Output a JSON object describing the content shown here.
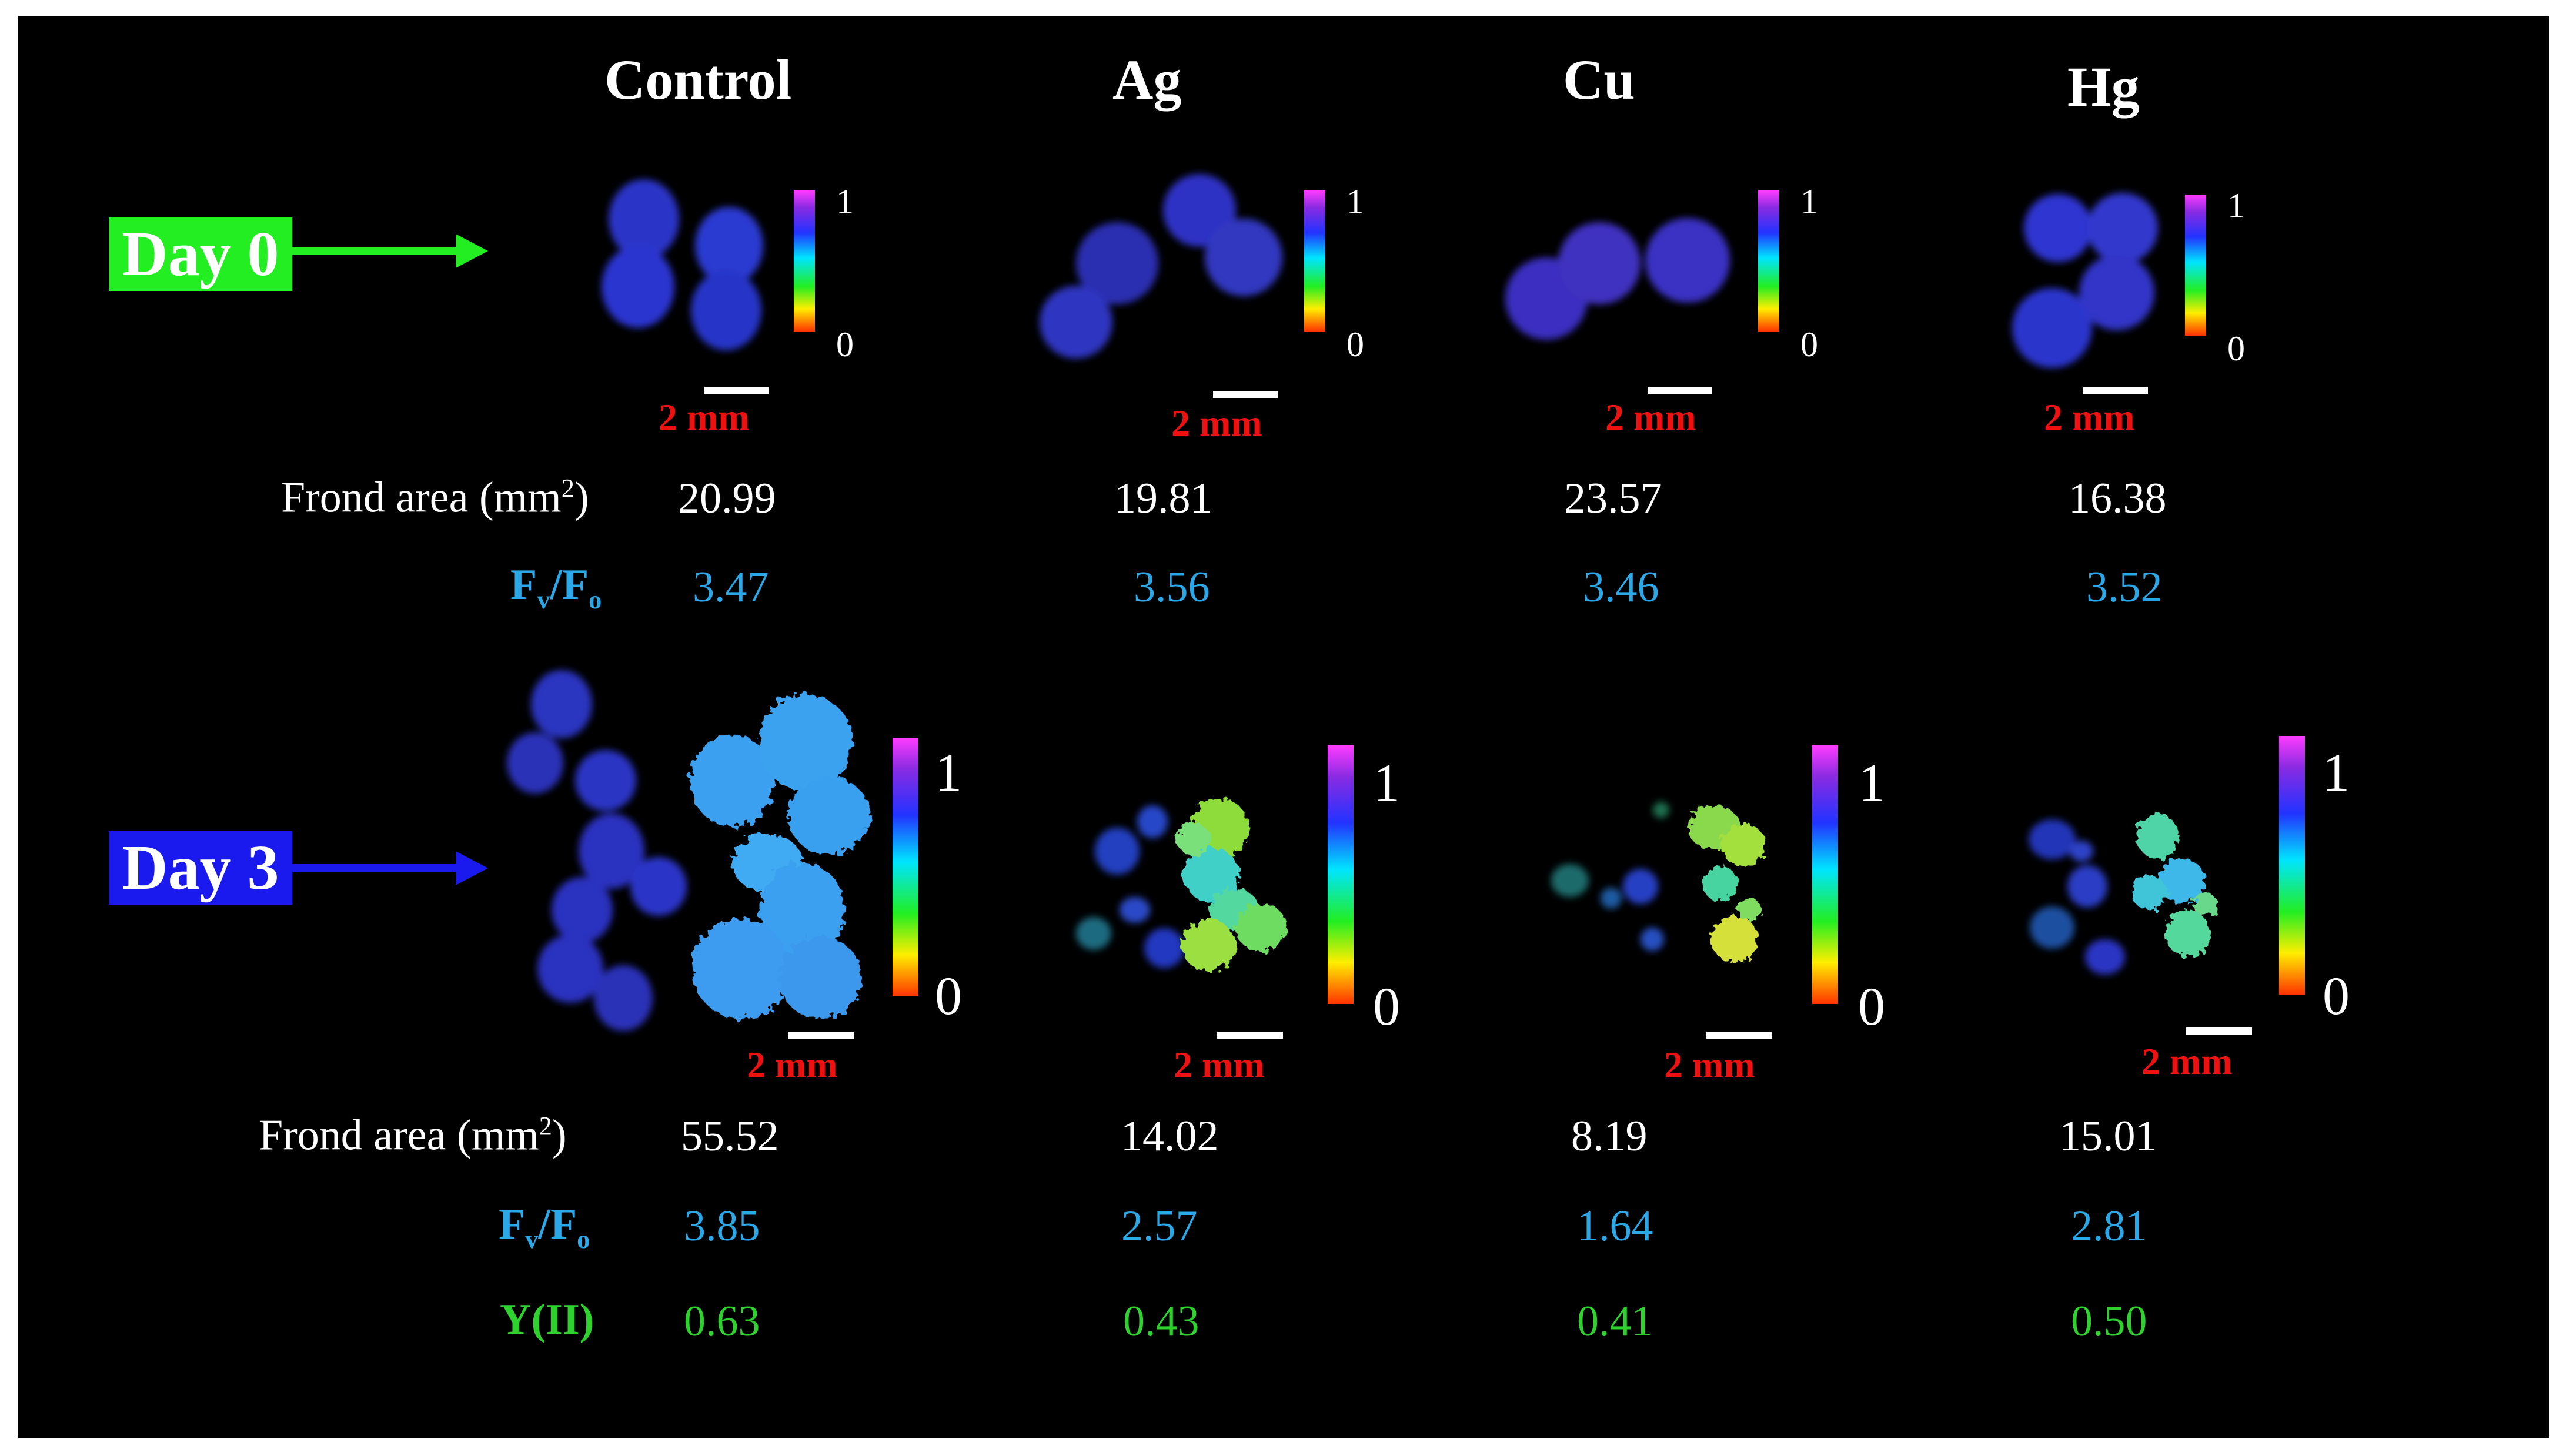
{
  "columns": [
    "Control",
    "Ag",
    "Cu",
    "Hg"
  ],
  "colors": {
    "day0": "#22ee22",
    "day3": "#1a1aee",
    "fvfo": "#2aa8e8",
    "yii": "#2ed12e",
    "scale": "#ee1111"
  },
  "day0": {
    "label": "Day 0",
    "frond_label": "Frond area (mm",
    "frond_sup": "2",
    "frond_close": ")",
    "frond_area": [
      "20.99",
      "19.81",
      "23.57",
      "16.38"
    ],
    "fvfo_label_main": "F",
    "fvfo_label_sub1": "v",
    "fvfo_label_slash": "/F",
    "fvfo_label_sub2": "o",
    "fvfo": [
      "3.47",
      "3.56",
      "3.46",
      "3.52"
    ]
  },
  "day3": {
    "label": "Day 3",
    "frond_label": "Frond area (mm",
    "frond_sup": "2",
    "frond_close": ")",
    "frond_area": [
      "55.52",
      "14.02",
      "8.19",
      "15.01"
    ],
    "fvfo_label_main": "F",
    "fvfo_label_sub1": "v",
    "fvfo_label_slash": "/F",
    "fvfo_label_sub2": "o",
    "fvfo": [
      "3.85",
      "2.57",
      "1.64",
      "2.81"
    ],
    "yii_label": "Y(II)",
    "yii": [
      "0.63",
      "0.43",
      "0.41",
      "0.50"
    ]
  },
  "scale_bar_label": "2 mm",
  "colorbar_max": "1",
  "colorbar_min": "0"
}
